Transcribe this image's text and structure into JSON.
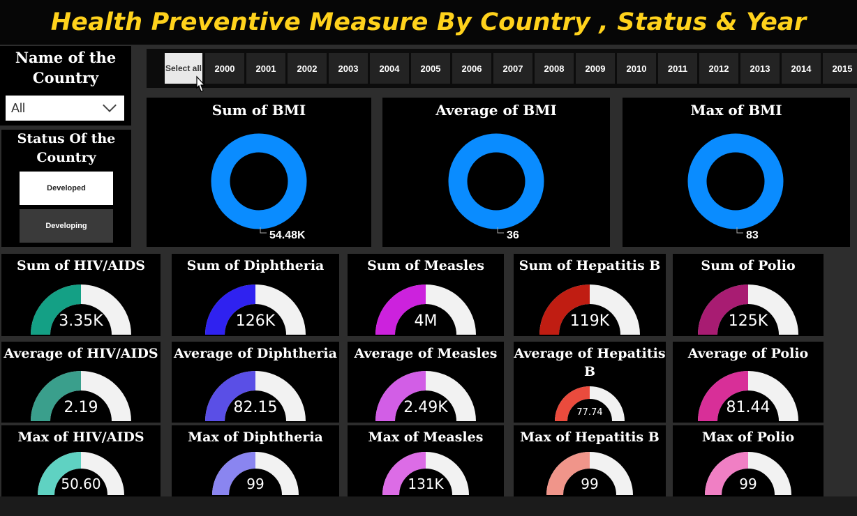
{
  "title": "Health Preventive Measure By Country , Status & Year",
  "country_filter": {
    "label": "Name of the Country",
    "value": "All"
  },
  "status_filter": {
    "label": "Status Of the Country",
    "options": [
      "Developed",
      "Developing"
    ]
  },
  "year_slicer": {
    "select_all": "Select all",
    "years": [
      "2000",
      "2001",
      "2002",
      "2003",
      "2004",
      "2005",
      "2006",
      "2007",
      "2008",
      "2009",
      "2010",
      "2011",
      "2012",
      "2013",
      "2014",
      "2015"
    ]
  },
  "bmi_cards": [
    {
      "title": "Sum of BMI",
      "value": "54.48K"
    },
    {
      "title": "Average of BMI",
      "value": "36"
    },
    {
      "title": "Max of BMI",
      "value": "83"
    }
  ],
  "colors": {
    "title": "#ffd21c",
    "bmi_donut": "#0a8cff"
  },
  "gauges": [
    {
      "title": "Sum of HIV/AIDS",
      "value": "3.35K",
      "fill": 0.5,
      "color": "#14a085"
    },
    {
      "title": "Sum of Diphtheria",
      "value": "126K",
      "fill": 0.5,
      "color": "#2f22f0"
    },
    {
      "title": "Sum of Measles",
      "value": "4M",
      "fill": 0.5,
      "color": "#cc22dd"
    },
    {
      "title": "Sum of Hepatitis B",
      "value": "119K",
      "fill": 0.5,
      "color": "#c01d12"
    },
    {
      "title": "Sum of Polio",
      "value": "125K",
      "fill": 0.5,
      "color": "#a81c72"
    },
    {
      "title": "Average of HIV/AIDS",
      "value": "2.19",
      "fill": 0.5,
      "color": "#3a9f8c"
    },
    {
      "title": "Average of Diphtheria",
      "value": "82.15",
      "fill": 0.5,
      "color": "#5a4fe6"
    },
    {
      "title": "Average of Measles",
      "value": "2.49K",
      "fill": 0.5,
      "color": "#d25ee6"
    },
    {
      "title": "Average of Hepatitis B",
      "value": "77.74",
      "fill": 0.5,
      "color": "#ea4b3d"
    },
    {
      "title": "Average of Polio",
      "value": "81.44",
      "fill": 0.5,
      "color": "#d82f98"
    },
    {
      "title": "Max of HIV/AIDS",
      "value": "50.60",
      "fill": 0.5,
      "color": "#5fd2c2"
    },
    {
      "title": "Max of Diphtheria",
      "value": "99",
      "fill": 0.5,
      "color": "#8a85f0"
    },
    {
      "title": "Max of Measles",
      "value": "131K",
      "fill": 0.5,
      "color": "#dc6ce6"
    },
    {
      "title": "Max of Hepatitis B",
      "value": "99",
      "fill": 0.5,
      "color": "#f0958a"
    },
    {
      "title": "Max of Polio",
      "value": "99",
      "fill": 0.5,
      "color": "#f07fc4"
    }
  ]
}
